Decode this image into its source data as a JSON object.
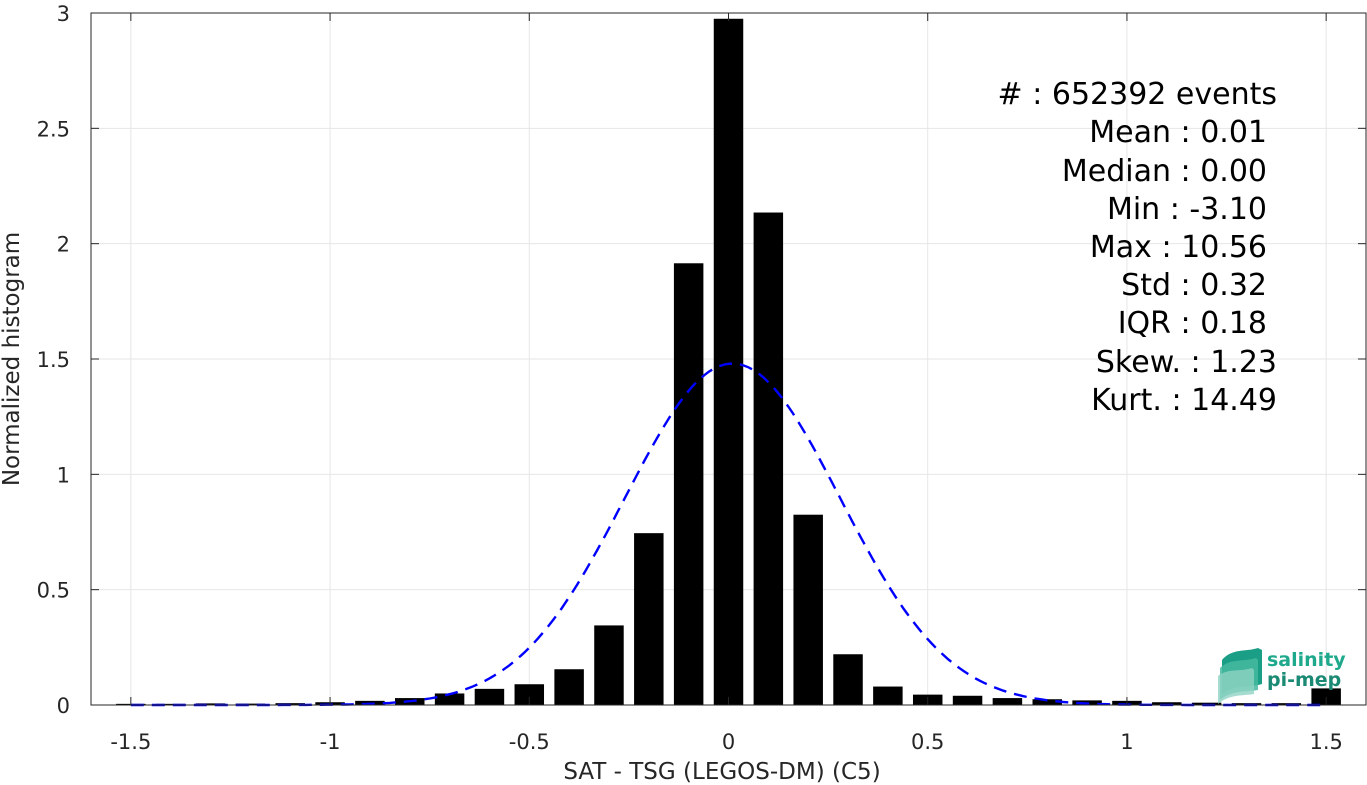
{
  "chart_data": {
    "type": "bar",
    "xlabel": "SAT - TSG (LEGOS-DM) (C5)",
    "ylabel": "Normalized histogram",
    "xlim": [
      -1.6,
      1.6
    ],
    "ylim": [
      0,
      3
    ],
    "xticks": [
      -1.5,
      -1,
      -0.5,
      0,
      0.5,
      1,
      1.5
    ],
    "xtick_labels": [
      "-1.5",
      "-1",
      "-0.5",
      "0",
      "0.5",
      "1",
      "1.5"
    ],
    "yticks": [
      0,
      0.5,
      1,
      1.5,
      2,
      2.5,
      3
    ],
    "ytick_labels": [
      "0",
      "0.5",
      "1",
      "1.5",
      "2",
      "2.5",
      "3"
    ],
    "grid": true,
    "bar_color": "#000000",
    "bins": [
      -1.5,
      -1.4,
      -1.3,
      -1.2,
      -1.1,
      -1.0,
      -0.9,
      -0.8,
      -0.7,
      -0.6,
      -0.5,
      -0.4,
      -0.3,
      -0.2,
      -0.1,
      0.0,
      0.1,
      0.2,
      0.3,
      0.4,
      0.5,
      0.6,
      0.7,
      0.8,
      0.9,
      1.0,
      1.1,
      1.2,
      1.3,
      1.4,
      1.5
    ],
    "values": [
      0.005,
      0.005,
      0.007,
      0.006,
      0.008,
      0.012,
      0.018,
      0.03,
      0.05,
      0.07,
      0.09,
      0.155,
      0.345,
      0.745,
      1.915,
      2.975,
      2.135,
      0.825,
      0.22,
      0.08,
      0.045,
      0.04,
      0.03,
      0.025,
      0.02,
      0.018,
      0.012,
      0.01,
      0.008,
      0.008,
      0.072
    ],
    "gaussian_fit": {
      "color": "#0000ff",
      "style": "dashed",
      "mean": 0.01,
      "std": 0.27,
      "peak": 1.48
    },
    "stats": [
      "#  : 652392 events",
      "Mean : 0.01",
      "Median : 0.00",
      "Min : -3.10",
      "Max : 10.56",
      "Std : 0.32",
      "IQR : 0.18",
      "Skew. : 1.23",
      "Kurt. : 14.49"
    ]
  },
  "logo": {
    "line1": "salinity",
    "line2": "pi-mep"
  }
}
